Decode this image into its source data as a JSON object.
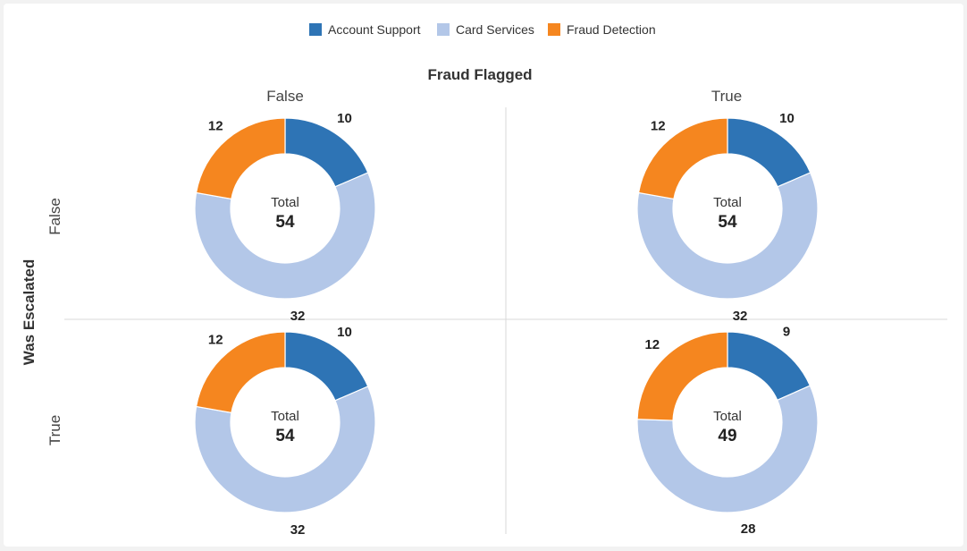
{
  "chart_data": {
    "type": "pie",
    "variant": "donut-facet-grid",
    "title": "Fraud Flagged",
    "col_facet": {
      "title": "Fraud Flagged",
      "values": [
        "False",
        "True"
      ]
    },
    "row_facet": {
      "title": "Was Escalated",
      "values": [
        "False",
        "True"
      ]
    },
    "legend": {
      "position": "top-center",
      "entries": [
        "Account Support",
        "Card Services",
        "Fraud Detection"
      ]
    },
    "series_colors": [
      "#2e74b5",
      "#b3c7e8",
      "#f5861f"
    ],
    "categories": [
      "Account Support",
      "Card Services",
      "Fraud Detection"
    ],
    "center_label": "Total",
    "panels": [
      {
        "col": "False",
        "row": "False",
        "values": [
          10,
          32,
          12
        ],
        "total": 54
      },
      {
        "col": "True",
        "row": "False",
        "values": [
          10,
          32,
          12
        ],
        "total": 54
      },
      {
        "col": "False",
        "row": "True",
        "values": [
          10,
          32,
          12
        ],
        "total": 54
      },
      {
        "col": "True",
        "row": "True",
        "values": [
          9,
          28,
          12
        ],
        "total": 49
      }
    ]
  }
}
